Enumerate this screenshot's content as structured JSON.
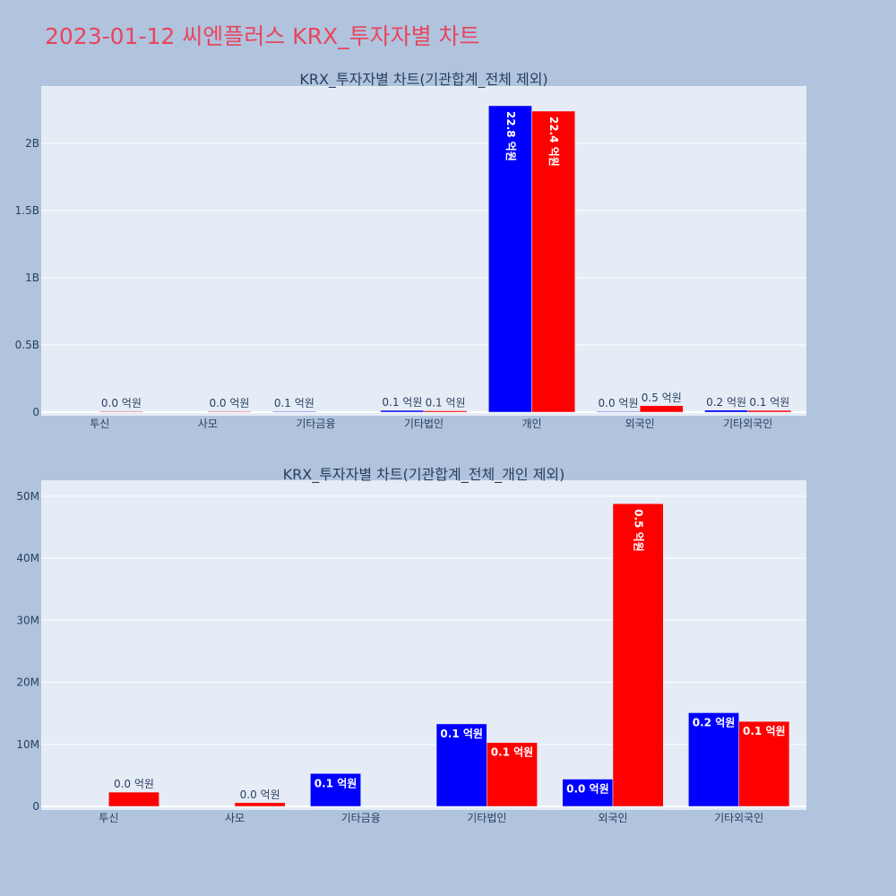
{
  "title": "2023-01-12 씨엔플러스 KRX_투자자별 차트",
  "colors": {
    "series_a": "#0000ff",
    "series_b": "#ff0000",
    "title": "#e8455e"
  },
  "chart_data": [
    {
      "type": "bar",
      "title": "KRX_투자자별 차트(기관합계_전체 제외)",
      "categories": [
        "투신",
        "사모",
        "기타금융",
        "기타법인",
        "개인",
        "외국인",
        "기타외국인"
      ],
      "ylim": [
        0,
        2400000000
      ],
      "yticks": [
        0,
        500000000,
        1000000000,
        1500000000,
        2000000000
      ],
      "ytick_labels": [
        "0",
        "0.5B",
        "1B",
        "1.5B",
        "2B"
      ],
      "grid": true,
      "series": [
        {
          "values": [
            null,
            null,
            5000000,
            13000000,
            2280000000,
            4000000,
            15000000
          ],
          "labels": [
            "",
            "",
            "0.1 억원",
            "0.1 억원",
            "22.8 억원",
            "0.0 억원",
            "0.2 억원"
          ]
        },
        {
          "values": [
            2000000,
            1000000,
            null,
            10000000,
            2240000000,
            48000000,
            13000000
          ],
          "labels": [
            "0.0 억원",
            "0.0 억원",
            "",
            "0.1 억원",
            "22.4 억원",
            "0.5 억원",
            "0.1 억원"
          ]
        }
      ]
    },
    {
      "type": "bar",
      "title": "KRX_투자자별 차트(기관합계_전체_개인 제외)",
      "categories": [
        "투신",
        "사모",
        "기타금융",
        "기타법인",
        "외국인",
        "기타외국인"
      ],
      "ylim": [
        0,
        52000000
      ],
      "yticks": [
        0,
        10000000,
        20000000,
        30000000,
        40000000,
        50000000
      ],
      "ytick_labels": [
        "0",
        "10M",
        "20M",
        "30M",
        "40M",
        "50M"
      ],
      "grid": true,
      "series": [
        {
          "values": [
            null,
            null,
            5300000,
            13300000,
            4400000,
            15100000
          ],
          "labels": [
            "",
            "",
            "0.1 억원",
            "0.1 억원",
            "0.0 억원",
            "0.2 억원"
          ]
        },
        {
          "values": [
            2300000,
            600000,
            null,
            10300000,
            48800000,
            13700000
          ],
          "labels": [
            "0.0 억원",
            "0.0 억원",
            "",
            "0.1 억원",
            "0.5 억원",
            "0.1 억원"
          ]
        }
      ]
    }
  ]
}
